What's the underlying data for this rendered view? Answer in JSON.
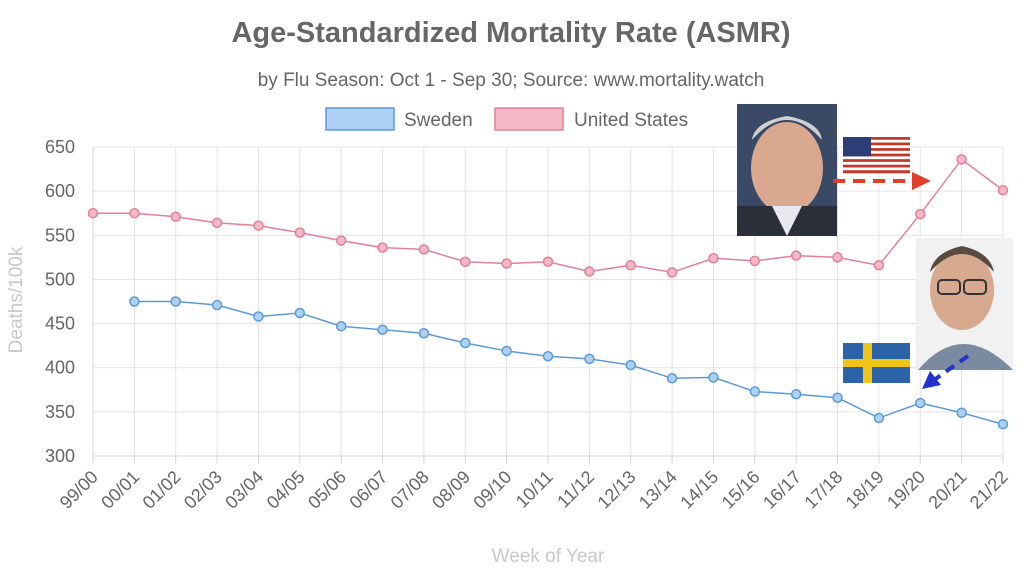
{
  "chart_data": {
    "type": "line",
    "title": "Age-Standardized Mortality Rate (ASMR)",
    "subtitle": "by Flu Season: Oct 1 - Sep 30; Source: www.mortality.watch",
    "xlabel": "Week of Year",
    "ylabel": "Deaths/100k",
    "ylim": [
      300,
      650
    ],
    "yticks": [
      300,
      350,
      400,
      450,
      500,
      550,
      600,
      650
    ],
    "grid": true,
    "legend": "top-center",
    "categories": [
      "99/00",
      "00/01",
      "01/02",
      "02/03",
      "03/04",
      "04/05",
      "05/06",
      "06/07",
      "07/08",
      "08/09",
      "09/10",
      "10/11",
      "11/12",
      "12/13",
      "13/14",
      "14/15",
      "15/16",
      "16/17",
      "17/18",
      "18/19",
      "19/20",
      "20/21",
      "21/22"
    ],
    "series": [
      {
        "name": "Sweden",
        "color": "#5b9bd5",
        "fill": "#aed0f5",
        "values": [
          null,
          475,
          475,
          471,
          458,
          462,
          447,
          443,
          439,
          428,
          419,
          413,
          410,
          403,
          388,
          389,
          373,
          370,
          366,
          343,
          360,
          349,
          336
        ]
      },
      {
        "name": "United States",
        "color": "#e0819a",
        "fill": "#f5b8c7",
        "values": [
          575,
          575,
          571,
          564,
          561,
          553,
          544,
          536,
          534,
          520,
          518,
          520,
          509,
          516,
          508,
          524,
          521,
          527,
          525,
          516,
          574,
          636,
          601
        ]
      }
    ]
  },
  "overlays": {
    "us_flag_icon": "us-flag-icon",
    "sweden_flag_icon": "sweden-flag-icon",
    "arrow_red_color": "#e0402a",
    "arrow_blue_color": "#2233cc"
  }
}
